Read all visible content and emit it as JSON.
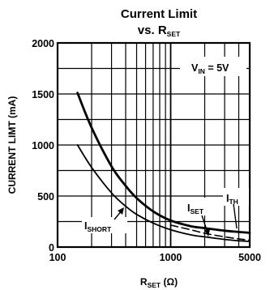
{
  "chart_data": {
    "type": "line",
    "title_line1": "Current Limit",
    "title_line2_main": "vs. R",
    "title_line2_sub": "SET",
    "xlabel_main": "R",
    "xlabel_sub": "SET",
    "xlabel_unit": " (Ω)",
    "ylabel": "CURRENT LIMT (mA)",
    "x_scale": "log",
    "xlim": [
      100,
      5000
    ],
    "ylim": [
      0,
      2000
    ],
    "x_ticks": [
      {
        "value": 100,
        "label": "100"
      },
      {
        "value": 1000,
        "label": "1000"
      },
      {
        "value": 5000,
        "label": "5000"
      }
    ],
    "y_ticks": [
      {
        "value": 0,
        "label": "0"
      },
      {
        "value": 500,
        "label": "500"
      },
      {
        "value": 1000,
        "label": "1000"
      },
      {
        "value": 1500,
        "label": "1500"
      },
      {
        "value": 2000,
        "label": "2000"
      }
    ],
    "grid": true,
    "series": [
      {
        "name_main": "I",
        "name_sub": "TH",
        "x": [
          150,
          200,
          300,
          400,
          500,
          700,
          1000,
          1500,
          2000,
          3000,
          4000,
          5000
        ],
        "values": [
          1510,
          1170,
          790,
          600,
          480,
          350,
          260,
          205,
          185,
          160,
          148,
          140
        ]
      },
      {
        "name_main": "I",
        "name_sub": "SET",
        "x": [
          1000,
          1500,
          2000,
          3000,
          4000,
          5000
        ],
        "values": [
          215,
          170,
          135,
          100,
          80,
          68
        ]
      },
      {
        "name_main": "I",
        "name_sub": "SHORT",
        "x": [
          150,
          200,
          300,
          400,
          500,
          700,
          1000,
          1500,
          2000,
          3000,
          4000,
          5000
        ],
        "values": [
          1000,
          780,
          530,
          400,
          320,
          235,
          170,
          120,
          100,
          75,
          62,
          55
        ]
      }
    ],
    "annotation": {
      "main": "V",
      "sub": "IN",
      "rest": " = 5V"
    }
  }
}
